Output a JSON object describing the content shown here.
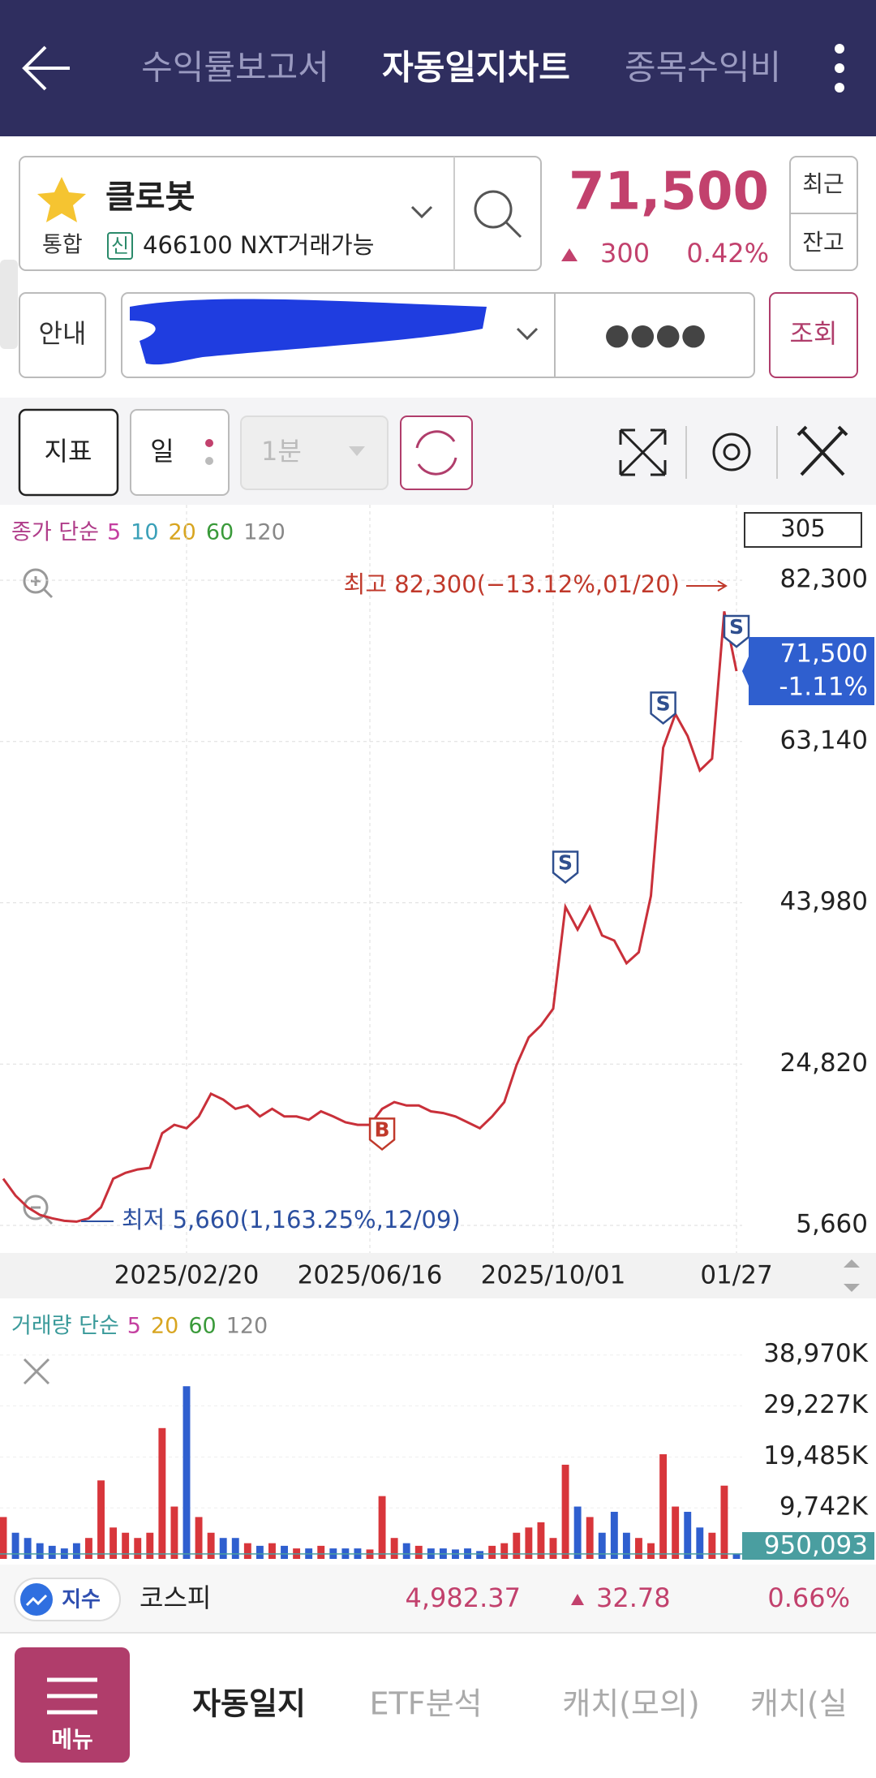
{
  "header": {
    "tabs": [
      "수익률보고서",
      "자동일지차트",
      "종목수익비"
    ]
  },
  "stock": {
    "name": "클로봇",
    "market": "통합",
    "credit": "신",
    "code_info": "466100 NXT거래가능",
    "price": "71,500",
    "change": "300",
    "change_rate": "0.42%",
    "buttons": [
      "최근",
      "잔고"
    ]
  },
  "account": {
    "guide": "안내",
    "password": "●●●●",
    "query": "조회"
  },
  "toolbar": {
    "indicator": "지표",
    "period": "일",
    "interval": "1분"
  },
  "chart_data": [
    {
      "type": "line",
      "legend_title": "종가 단순",
      "legend": [
        {
          "name": "5",
          "color": "#c43fa0"
        },
        {
          "name": "10",
          "color": "#3aa0b8"
        },
        {
          "name": "20",
          "color": "#d8a520"
        },
        {
          "name": "60",
          "color": "#3a9a3a"
        },
        {
          "name": "120",
          "color": "#888888"
        }
      ],
      "period_count": "305",
      "categories": [
        null,
        null,
        null,
        null,
        null,
        null,
        null,
        null,
        null,
        null,
        null,
        null,
        null,
        null,
        null,
        "2025/02/20",
        null,
        null,
        null,
        null,
        null,
        null,
        null,
        null,
        null,
        null,
        null,
        null,
        null,
        null,
        "2025/06/16",
        null,
        null,
        null,
        null,
        null,
        null,
        null,
        null,
        null,
        null,
        null,
        null,
        null,
        null,
        "2025/10/01",
        null,
        null,
        null,
        null,
        null,
        null,
        null,
        null,
        null,
        null,
        null,
        null,
        null,
        null,
        "01/27"
      ],
      "values": [
        11200,
        9200,
        7800,
        6900,
        6500,
        6200,
        6100,
        6500,
        7800,
        11200,
        11900,
        12300,
        12500,
        16600,
        17600,
        17200,
        18600,
        21300,
        20600,
        19500,
        19900,
        18600,
        19500,
        18600,
        18600,
        18200,
        19200,
        18600,
        17900,
        17600,
        17600,
        19500,
        20300,
        19900,
        19900,
        19200,
        19000,
        18600,
        17900,
        17200,
        18600,
        20300,
        24700,
        28000,
        29400,
        31400,
        43500,
        40800,
        43500,
        40100,
        39500,
        36800,
        38100,
        44800,
        62400,
        66400,
        63800,
        59700,
        61100,
        78600,
        71500
      ],
      "color": "#c9303a",
      "signals": [
        null,
        null,
        null,
        null,
        null,
        null,
        null,
        null,
        null,
        null,
        null,
        null,
        null,
        null,
        null,
        null,
        null,
        null,
        null,
        null,
        null,
        null,
        null,
        null,
        null,
        null,
        null,
        null,
        null,
        null,
        null,
        "B",
        null,
        null,
        null,
        null,
        null,
        null,
        null,
        null,
        null,
        null,
        null,
        null,
        null,
        null,
        "S",
        null,
        null,
        null,
        null,
        null,
        null,
        null,
        "S",
        null,
        null,
        null,
        null,
        null,
        "S"
      ],
      "ylim": [
        5660,
        82300
      ],
      "yticks": [
        {
          "value": 5660,
          "label": "5,660"
        },
        {
          "value": 24820,
          "label": "24,820"
        },
        {
          "value": 43980,
          "label": "43,980"
        },
        {
          "value": 63140,
          "label": "63,140"
        },
        {
          "value": 82300,
          "label": "82,300"
        }
      ],
      "grid": true,
      "high_note": "최고 82,300(−13.12%,01/20)",
      "low_note": "최저 5,660(1,163.25%,12/09)",
      "last_label": "71,500",
      "last_change": "-1.11%"
    },
    {
      "type": "bar",
      "legend_title": "거래량 단순",
      "legend": [
        {
          "name": "5",
          "color": "#c43fa0"
        },
        {
          "name": "20",
          "color": "#d8a520"
        },
        {
          "name": "60",
          "color": "#3a9a3a"
        },
        {
          "name": "120",
          "color": "#888888"
        }
      ],
      "values": [
        8000,
        5000,
        4000,
        3000,
        2500,
        2000,
        3000,
        4000,
        15000,
        6000,
        5000,
        4000,
        5000,
        25000,
        10000,
        33000,
        8000,
        5000,
        4000,
        4000,
        3000,
        2500,
        3000,
        2500,
        2000,
        2000,
        2500,
        2000,
        2000,
        2000,
        1800,
        12000,
        4000,
        3000,
        2500,
        2000,
        2000,
        1800,
        2000,
        1500,
        2500,
        3000,
        5000,
        6000,
        7000,
        4000,
        18000,
        10000,
        8000,
        5000,
        9000,
        5000,
        4000,
        3000,
        20000,
        10000,
        9000,
        6000,
        5000,
        14000,
        950.093
      ],
      "up_color": "#d8363b",
      "down_color": "#2f5fcf",
      "ylim": [
        0,
        48700
      ],
      "yticks": [
        {
          "value": 9742,
          "label": "9,742K"
        },
        {
          "value": 19485,
          "label": "19,485K"
        },
        {
          "value": 29227,
          "label": "29,227K"
        },
        {
          "value": 38970,
          "label": "38,970K"
        }
      ],
      "last_value": {
        "value": 950.093,
        "label": "950,093"
      }
    }
  ],
  "index_bar": {
    "badge": "지수",
    "name": "코스피",
    "value": "4,982.37",
    "change": "32.78",
    "change_rate": "0.66%"
  },
  "bottom_nav": {
    "menu": "메뉴",
    "tabs": [
      "자동일지",
      "ETF분석",
      "캐치(모의)",
      "캐치(실"
    ]
  }
}
